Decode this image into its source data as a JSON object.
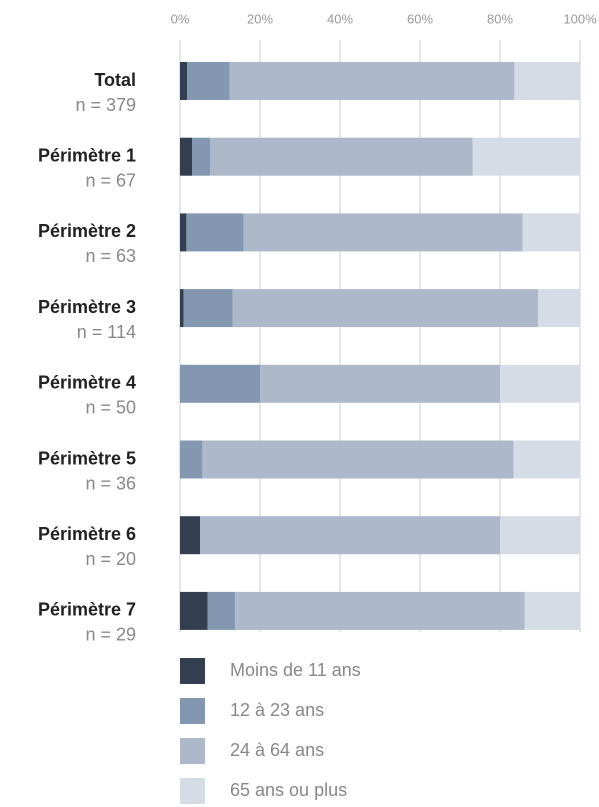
{
  "chart_data": {
    "type": "stacked-bar-horizontal",
    "categories": [
      "Total",
      "Périmètre 1",
      "Périmètre 2",
      "Périmètre 3",
      "Périmètre 4",
      "Périmètre 5",
      "Périmètre 6",
      "Périmètre 7"
    ],
    "category_notes": [
      "n = 379",
      "n = 67",
      "n = 63",
      "n = 114",
      "n = 50",
      "n = 36",
      "n = 20",
      "n = 29"
    ],
    "series": [
      {
        "name": "Moins de 11 ans",
        "color": "#333f50",
        "values": [
          1.8,
          3.0,
          1.6,
          0.9,
          0,
          0,
          5,
          6.9
        ]
      },
      {
        "name": "12 à 23 ans",
        "color": "#8497b0",
        "values": [
          10.6,
          4.5,
          14.3,
          12.3,
          20,
          5.6,
          0,
          6.9
        ]
      },
      {
        "name": "24 à 64 ans",
        "color": "#adb9ca",
        "values": [
          71.2,
          65.7,
          69.8,
          76.3,
          60,
          77.8,
          75,
          72.4
        ]
      },
      {
        "name": "65 ans ou plus",
        "color": "#d6dce5",
        "values": [
          16.4,
          26.9,
          14.3,
          10.5,
          20,
          16.7,
          20,
          13.8
        ]
      }
    ],
    "xlim": [
      0,
      100
    ],
    "xticks": [
      {
        "value": 0,
        "label": "0%"
      },
      {
        "value": 20,
        "label": "20%"
      },
      {
        "value": 40,
        "label": "40%"
      },
      {
        "value": 60,
        "label": "60%"
      },
      {
        "value": 80,
        "label": "80%"
      },
      {
        "value": 100,
        "label": "100%"
      }
    ],
    "grid": true
  }
}
